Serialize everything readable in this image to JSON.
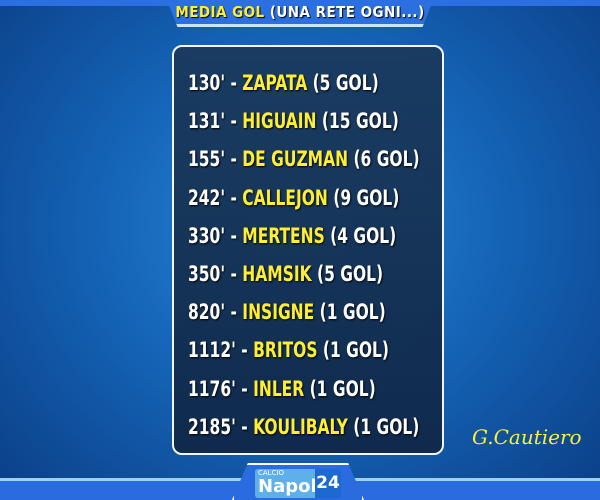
{
  "header": {
    "title_highlight": "MEDIA GOL",
    "title_rest": "(UNA RETE OGNI...)"
  },
  "rows": [
    {
      "minutes": "130'",
      "name": "ZAPATA",
      "goals": "(5 GOL)"
    },
    {
      "minutes": "131'",
      "name": "HIGUAIN",
      "goals": "(15 GOL)"
    },
    {
      "minutes": "155'",
      "name": "DE GUZMAN",
      "goals": "(6 GOL)"
    },
    {
      "minutes": "242'",
      "name": "CALLEJON",
      "goals": "(9 GOL)"
    },
    {
      "minutes": "330'",
      "name": "MERTENS",
      "goals": "(4 GOL)"
    },
    {
      "minutes": "350'",
      "name": "HAMSIK",
      "goals": "(5 GOL)"
    },
    {
      "minutes": "820'",
      "name": "INSIGNE",
      "goals": "(1 GOL)"
    },
    {
      "minutes": "1112'",
      "name": "BRITOS",
      "goals": "(1 GOL)"
    },
    {
      "minutes": "1176'",
      "name": "INLER",
      "goals": "(1 GOL)"
    },
    {
      "minutes": "2185'",
      "name": "KOULIBALY",
      "goals": "(1 GOL)"
    }
  ],
  "signature": "G.Cautiero",
  "logo": {
    "small": "CALCIO",
    "main": "Napoli",
    "number": "24"
  },
  "colors": {
    "highlight": "#ffee33",
    "panel": "#163356",
    "header": "#2b6fe0"
  }
}
